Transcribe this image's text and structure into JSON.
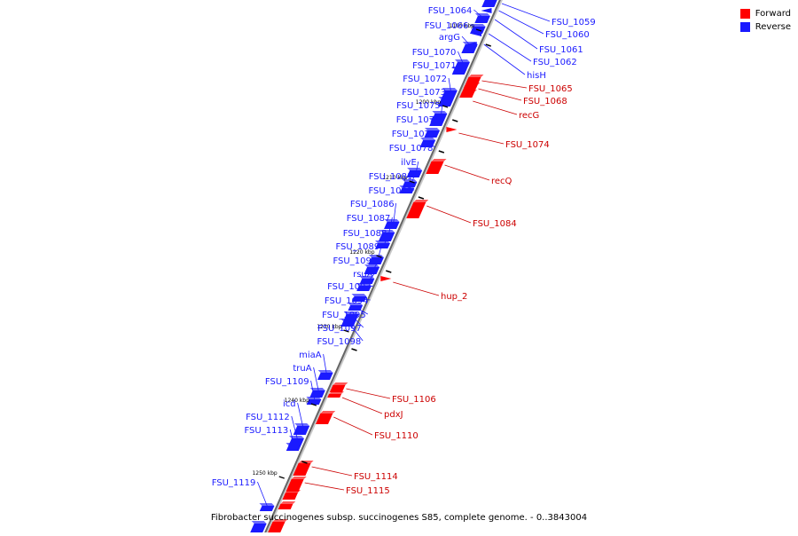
{
  "caption": "Fibrobacter succinogenes subsp. succinogenes S85, complete genome. - 0..3843004",
  "legend": {
    "forward_label": "Forward",
    "reverse_label": "Reverse",
    "forward_color": "#ff0000",
    "reverse_color": "#1a1aff"
  },
  "ticks": [
    "1190 kbp",
    "1200 kbp",
    "1210 kbp",
    "1220 kbp",
    "1230 kbp",
    "1240 kbp",
    "1250 kbp"
  ],
  "reverse_labels": [
    "FSU_1064",
    "FSU_1066",
    "argG",
    "FSU_1070",
    "FSU_1071",
    "FSU_1072",
    "FSU_1073",
    "FSU_1075",
    "FSU_1076",
    "FSU_1077",
    "FSU_1078",
    "ilvE",
    "FSU_1081",
    "FSU_1083",
    "FSU_1086",
    "FSU_1087",
    "FSU_1088",
    "FSU_1089",
    "FSU_1090",
    "rsuA",
    "FSU_1093",
    "FSU_1094",
    "FSU_1095",
    "FSU_1097",
    "FSU_1098",
    "miaA",
    "truA",
    "FSU_1109",
    "icd",
    "FSU_1112",
    "FSU_1113",
    "FSU_1119"
  ],
  "right_reverse_labels": [
    "FSU_1059",
    "FSU_1060",
    "FSU_1061",
    "FSU_1062",
    "hisH"
  ],
  "forward_labels": [
    "FSU_1065",
    "FSU_1068",
    "recG",
    "FSU_1074",
    "recQ",
    "FSU_1084",
    "hup_2",
    "FSU_1106",
    "pdxJ",
    "FSU_1110",
    "FSU_1114",
    "FSU_1115"
  ]
}
